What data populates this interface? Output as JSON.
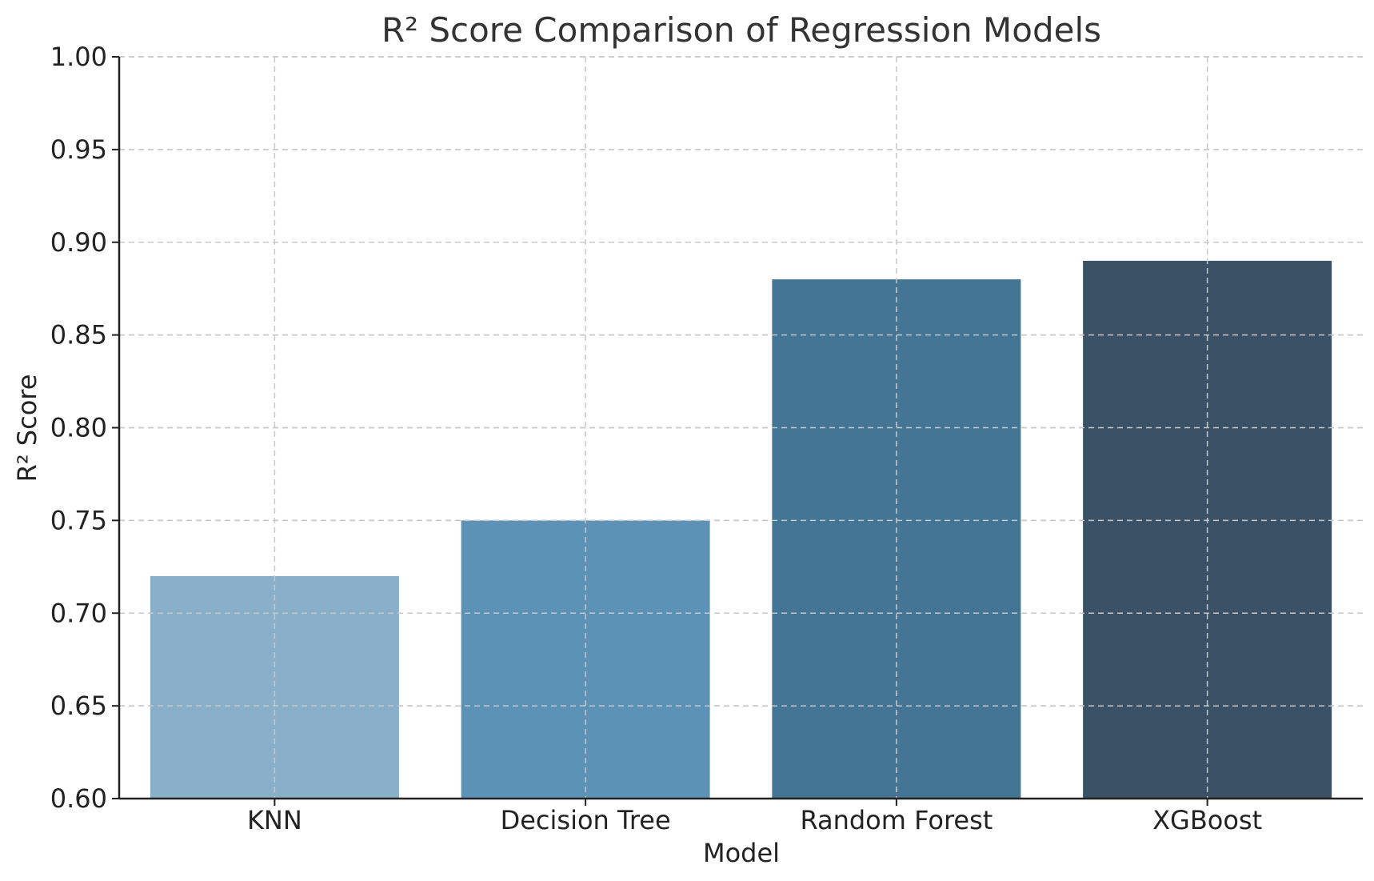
{
  "chart_data": {
    "type": "bar",
    "title": "R² Score Comparison of Regression Models",
    "xlabel": "Model",
    "ylabel": "R² Score",
    "categories": [
      "KNN",
      "Decision Tree",
      "Random Forest",
      "XGBoost"
    ],
    "values": [
      0.72,
      0.75,
      0.88,
      0.89
    ],
    "colors": [
      "#89afc9",
      "#5d92b7",
      "#447594",
      "#3b5266"
    ],
    "ylim": [
      0.6,
      1.0
    ],
    "yticks": [
      "0.60",
      "0.65",
      "0.70",
      "0.75",
      "0.80",
      "0.85",
      "0.90",
      "0.95",
      "1.00"
    ],
    "grid": true,
    "grid_style": "dashed",
    "legend": "none"
  }
}
